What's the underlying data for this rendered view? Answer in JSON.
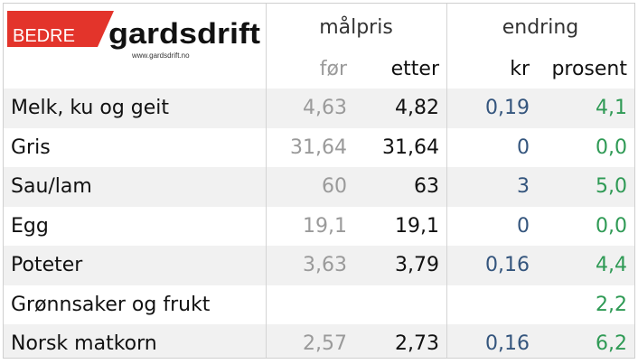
{
  "logo": {
    "brand_red": "BEDRE",
    "brand_black": "gardsdrift",
    "url": "www.gardsdrift.no"
  },
  "header": {
    "group1": "målpris",
    "group2": "endring",
    "sub": [
      "før",
      "etter",
      "kr",
      "prosent"
    ]
  },
  "table": {
    "rows": [
      [
        "Melk, ku og geit",
        "4,63",
        "4,82",
        "0,19",
        "4,1"
      ],
      [
        "Gris",
        "31,64",
        "31,64",
        "0",
        "0,0"
      ],
      [
        "Sau/lam",
        "60",
        "63",
        "3",
        "5,0"
      ],
      [
        "Egg",
        "19,1",
        "19,1",
        "0",
        "0,0"
      ],
      [
        "Poteter",
        "3,63",
        "3,79",
        "0,16",
        "4,4"
      ],
      [
        "Grønnsaker og frukt",
        null,
        null,
        null,
        "2,2"
      ],
      [
        "Norsk matkorn",
        "2,57",
        "2,73",
        "0,16",
        "6,2"
      ]
    ]
  }
}
